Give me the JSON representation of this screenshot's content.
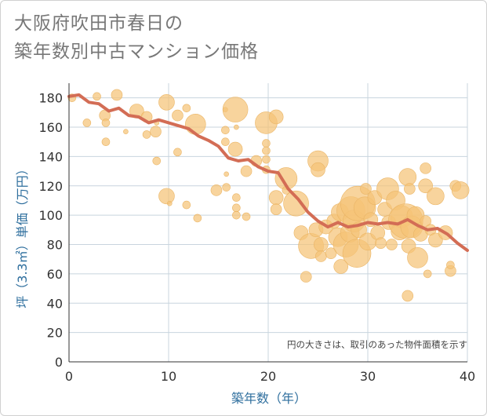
{
  "title_line1": "大阪府吹田市春日の",
  "title_line2": "築年数別中古マンション価格",
  "colors": {
    "bubble_fill": "#f5c377",
    "bubble_stroke": "#eab566",
    "trend_line": "#d36d55",
    "grid": "#c8d4de",
    "axis_label": "#2f6f9e"
  },
  "chart_data": {
    "type": "scatter",
    "title": "大阪府吹田市春日の築年数別中古マンション価格",
    "xlabel": "築年数（年）",
    "ylabel": "坪（3.3㎡）単価（万円）",
    "xlim": [
      0,
      40
    ],
    "ylim": [
      0,
      190
    ],
    "x_ticks": [
      "0",
      "10",
      "20",
      "30",
      "40"
    ],
    "y_ticks": [
      "0",
      "20",
      "40",
      "60",
      "80",
      "100",
      "120",
      "140",
      "160",
      "180"
    ],
    "grid": true,
    "annotation": "円の大きさは、取引のあった物件面積を示す",
    "trend_line": {
      "x": [
        0,
        1,
        2,
        3,
        4,
        5,
        6,
        7,
        8,
        9,
        10,
        11,
        12,
        13,
        14,
        15,
        16,
        17,
        18,
        19,
        20,
        21,
        22,
        23,
        24,
        25,
        26,
        27,
        28,
        29,
        30,
        31,
        32,
        33,
        34,
        35,
        36,
        37,
        38,
        39,
        40
      ],
      "y": [
        181,
        182,
        177,
        176,
        171,
        173,
        168,
        167,
        163,
        165,
        163,
        161,
        159,
        154,
        151,
        147,
        139,
        137,
        138,
        133,
        130,
        129,
        118,
        111,
        102,
        96,
        92,
        95,
        92,
        93,
        95,
        94,
        95,
        94,
        97,
        93,
        90,
        91,
        87,
        81,
        76
      ]
    },
    "bubbles": [
      {
        "x": 0.3,
        "y": 180,
        "r": 5
      },
      {
        "x": 1.8,
        "y": 163,
        "r": 5
      },
      {
        "x": 2.8,
        "y": 181,
        "r": 5
      },
      {
        "x": 3.6,
        "y": 168,
        "r": 7
      },
      {
        "x": 3.7,
        "y": 163,
        "r": 5
      },
      {
        "x": 3.7,
        "y": 150,
        "r": 5
      },
      {
        "x": 4.8,
        "y": 182,
        "r": 7
      },
      {
        "x": 5.7,
        "y": 157,
        "r": 3
      },
      {
        "x": 6.8,
        "y": 171,
        "r": 9
      },
      {
        "x": 7.8,
        "y": 155,
        "r": 5
      },
      {
        "x": 7.8,
        "y": 167,
        "r": 7
      },
      {
        "x": 8.7,
        "y": 157,
        "r": 7
      },
      {
        "x": 8.8,
        "y": 163,
        "r": 3
      },
      {
        "x": 8.8,
        "y": 137,
        "r": 5
      },
      {
        "x": 9.8,
        "y": 177,
        "r": 10
      },
      {
        "x": 9.8,
        "y": 113,
        "r": 10
      },
      {
        "x": 10.1,
        "y": 108,
        "r": 3
      },
      {
        "x": 10.9,
        "y": 168,
        "r": 7
      },
      {
        "x": 10.9,
        "y": 143,
        "r": 5
      },
      {
        "x": 11.8,
        "y": 173,
        "r": 5
      },
      {
        "x": 11.8,
        "y": 107,
        "r": 5
      },
      {
        "x": 12.7,
        "y": 162,
        "r": 13
      },
      {
        "x": 12.9,
        "y": 98,
        "r": 5
      },
      {
        "x": 14.8,
        "y": 117,
        "r": 7
      },
      {
        "x": 15.7,
        "y": 172,
        "r": 3
      },
      {
        "x": 15.7,
        "y": 158,
        "r": 5
      },
      {
        "x": 15.7,
        "y": 150,
        "r": 5
      },
      {
        "x": 15.8,
        "y": 128,
        "r": 3
      },
      {
        "x": 15.8,
        "y": 119,
        "r": 5
      },
      {
        "x": 16.7,
        "y": 172,
        "r": 16
      },
      {
        "x": 16.7,
        "y": 145,
        "r": 9
      },
      {
        "x": 16.8,
        "y": 160,
        "r": 3
      },
      {
        "x": 16.8,
        "y": 112,
        "r": 5
      },
      {
        "x": 16.8,
        "y": 105,
        "r": 5
      },
      {
        "x": 16.8,
        "y": 100,
        "r": 5
      },
      {
        "x": 17.8,
        "y": 99,
        "r": 5
      },
      {
        "x": 17.8,
        "y": 130,
        "r": 7
      },
      {
        "x": 18.8,
        "y": 137,
        "r": 7
      },
      {
        "x": 19.8,
        "y": 163,
        "r": 14
      },
      {
        "x": 19.8,
        "y": 149,
        "r": 5
      },
      {
        "x": 19.8,
        "y": 144,
        "r": 5
      },
      {
        "x": 19.8,
        "y": 138,
        "r": 5
      },
      {
        "x": 19.8,
        "y": 131,
        "r": 5
      },
      {
        "x": 20.8,
        "y": 167,
        "r": 9
      },
      {
        "x": 20.8,
        "y": 112,
        "r": 9
      },
      {
        "x": 20.8,
        "y": 104,
        "r": 7
      },
      {
        "x": 21.8,
        "y": 125,
        "r": 14
      },
      {
        "x": 21.8,
        "y": 117,
        "r": 5
      },
      {
        "x": 22.8,
        "y": 108,
        "r": 16
      },
      {
        "x": 23.3,
        "y": 88,
        "r": 9
      },
      {
        "x": 23.8,
        "y": 58,
        "r": 7
      },
      {
        "x": 24.3,
        "y": 79,
        "r": 16
      },
      {
        "x": 24.8,
        "y": 90,
        "r": 9
      },
      {
        "x": 25.0,
        "y": 137,
        "r": 13
      },
      {
        "x": 25.0,
        "y": 131,
        "r": 9
      },
      {
        "x": 25.3,
        "y": 80,
        "r": 9
      },
      {
        "x": 25.3,
        "y": 72,
        "r": 7
      },
      {
        "x": 25.8,
        "y": 92,
        "r": 9
      },
      {
        "x": 26.3,
        "y": 74,
        "r": 7
      },
      {
        "x": 26.6,
        "y": 96,
        "r": 9
      },
      {
        "x": 27.0,
        "y": 85,
        "r": 12
      },
      {
        "x": 27.2,
        "y": 102,
        "r": 11
      },
      {
        "x": 27.3,
        "y": 65,
        "r": 9
      },
      {
        "x": 27.8,
        "y": 80,
        "r": 16
      },
      {
        "x": 28.2,
        "y": 88,
        "r": 12
      },
      {
        "x": 28.3,
        "y": 103,
        "r": 18
      },
      {
        "x": 28.6,
        "y": 96,
        "r": 14
      },
      {
        "x": 28.9,
        "y": 74,
        "r": 18
      },
      {
        "x": 29.0,
        "y": 108,
        "r": 22
      },
      {
        "x": 29.1,
        "y": 90,
        "r": 10
      },
      {
        "x": 29.7,
        "y": 105,
        "r": 14
      },
      {
        "x": 29.8,
        "y": 118,
        "r": 7
      },
      {
        "x": 30.0,
        "y": 82,
        "r": 11
      },
      {
        "x": 30.3,
        "y": 97,
        "r": 9
      },
      {
        "x": 30.7,
        "y": 112,
        "r": 9
      },
      {
        "x": 31.0,
        "y": 88,
        "r": 9
      },
      {
        "x": 31.3,
        "y": 81,
        "r": 7
      },
      {
        "x": 31.7,
        "y": 104,
        "r": 9
      },
      {
        "x": 32.0,
        "y": 118,
        "r": 14
      },
      {
        "x": 32.1,
        "y": 95,
        "r": 9
      },
      {
        "x": 32.4,
        "y": 80,
        "r": 7
      },
      {
        "x": 32.8,
        "y": 110,
        "r": 12
      },
      {
        "x": 33.2,
        "y": 89,
        "r": 11
      },
      {
        "x": 33.4,
        "y": 99,
        "r": 14
      },
      {
        "x": 33.8,
        "y": 96,
        "r": 22
      },
      {
        "x": 34.0,
        "y": 126,
        "r": 11
      },
      {
        "x": 34.0,
        "y": 45,
        "r": 7
      },
      {
        "x": 34.1,
        "y": 79,
        "r": 9
      },
      {
        "x": 34.2,
        "y": 118,
        "r": 7
      },
      {
        "x": 34.4,
        "y": 92,
        "r": 14
      },
      {
        "x": 34.8,
        "y": 100,
        "r": 11
      },
      {
        "x": 35.0,
        "y": 71,
        "r": 13
      },
      {
        "x": 35.3,
        "y": 87,
        "r": 9
      },
      {
        "x": 35.8,
        "y": 132,
        "r": 7
      },
      {
        "x": 35.8,
        "y": 120,
        "r": 9
      },
      {
        "x": 35.8,
        "y": 96,
        "r": 7
      },
      {
        "x": 36.0,
        "y": 60,
        "r": 5
      },
      {
        "x": 36.3,
        "y": 90,
        "r": 7
      },
      {
        "x": 36.8,
        "y": 113,
        "r": 11
      },
      {
        "x": 36.8,
        "y": 83,
        "r": 9
      },
      {
        "x": 37.8,
        "y": 88,
        "r": 9
      },
      {
        "x": 38.3,
        "y": 62,
        "r": 7
      },
      {
        "x": 38.3,
        "y": 66,
        "r": 5
      },
      {
        "x": 38.8,
        "y": 120,
        "r": 7
      },
      {
        "x": 39.3,
        "y": 117,
        "r": 11
      }
    ]
  }
}
